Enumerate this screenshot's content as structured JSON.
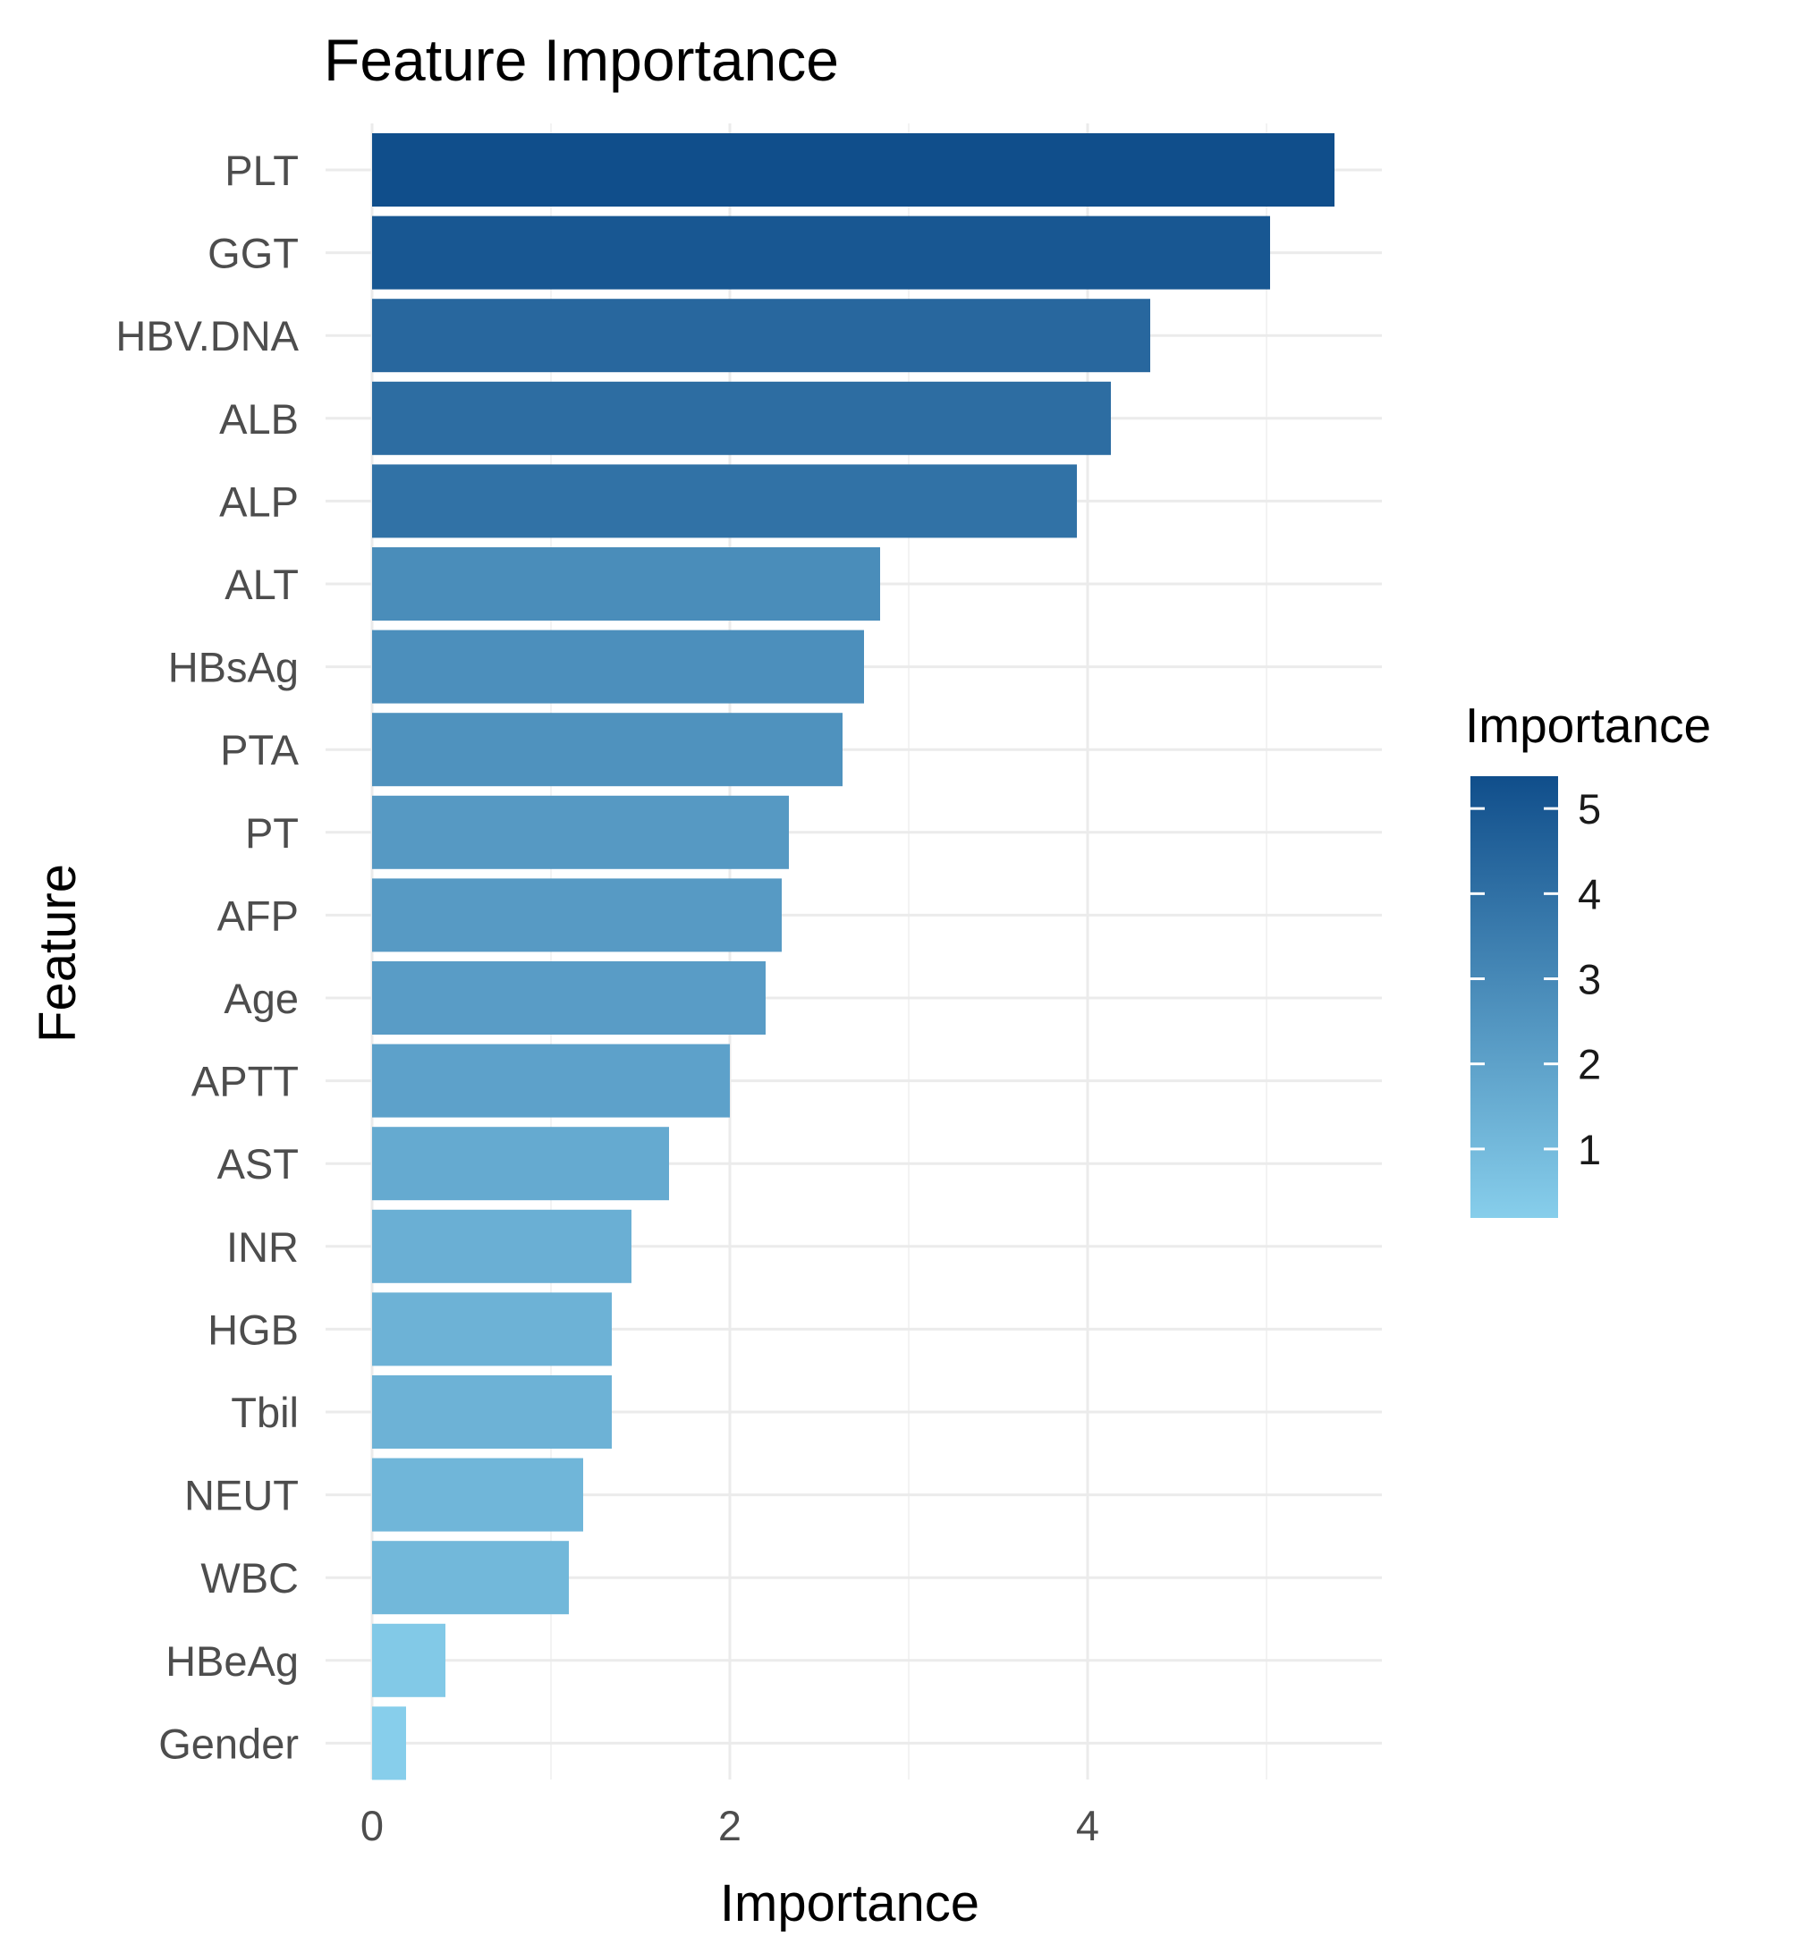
{
  "chart_data": {
    "type": "bar",
    "orientation": "horizontal",
    "title": "Feature Importance",
    "xlabel": "Importance",
    "ylabel": "Feature",
    "categories": [
      "PLT",
      "GGT",
      "HBV.DNA",
      "ALB",
      "ALP",
      "ALT",
      "HBsAg",
      "PTA",
      "PT",
      "AFP",
      "Age",
      "APTT",
      "AST",
      "INR",
      "HGB",
      "Tbil",
      "NEUT",
      "WBC",
      "HBeAg",
      "Gender"
    ],
    "values": [
      5.38,
      5.02,
      4.35,
      4.13,
      3.94,
      2.84,
      2.75,
      2.63,
      2.33,
      2.29,
      2.2,
      2.0,
      1.66,
      1.45,
      1.34,
      1.34,
      1.18,
      1.1,
      0.41,
      0.19
    ],
    "xlim": [
      0,
      5.65
    ],
    "xticks": [
      0,
      2,
      4
    ],
    "grid": true,
    "legend": {
      "title": "Importance",
      "position": "right",
      "ticks": [
        1,
        2,
        3,
        4,
        5
      ],
      "range": [
        0.19,
        5.38
      ],
      "color_low": "#87ceeb",
      "color_high": "#104e8b"
    }
  }
}
